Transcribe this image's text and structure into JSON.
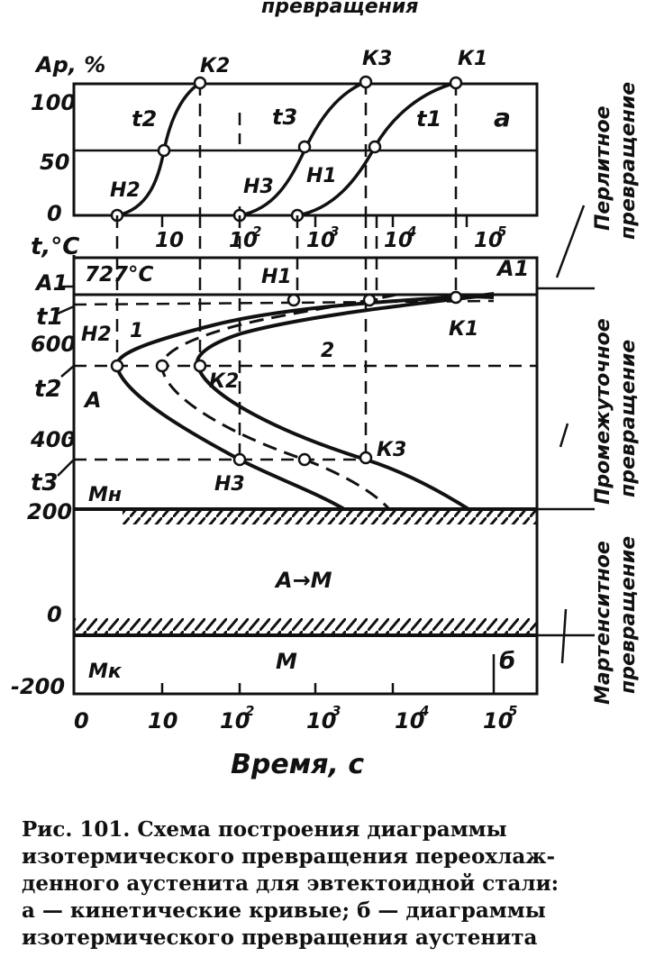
{
  "figure": {
    "top_fragment": "превращения",
    "panel_a": {
      "ylabel": "Ар, %",
      "yticks": [
        "100",
        "50",
        "0"
      ],
      "xticks": [
        "10",
        "10",
        "2",
        "10",
        "3",
        "10",
        "4",
        "10",
        "5"
      ],
      "panel_letter": "а",
      "curve_labels": [
        "t2",
        "t3",
        "t1"
      ],
      "start_points": [
        "Н2",
        "Н3",
        "Н1"
      ],
      "end_points": [
        "К2",
        "К3",
        "К1"
      ]
    },
    "panel_b": {
      "ylabel": "t,°С",
      "yticks": [
        "600",
        "400",
        "200",
        "0",
        "-200"
      ],
      "temp_marks": [
        "A1",
        "t1",
        "t2",
        "t3"
      ],
      "a1_value": "727°С",
      "a1_right": "A1",
      "curve_labels": [
        "1",
        "2"
      ],
      "region_austenite": "A",
      "region_martensite_transition": "A→M",
      "region_martensite": "M",
      "mn_label": "Мн",
      "mk_label": "Мк",
      "panel_letter": "б",
      "point_labels": [
        "Н1",
        "Н2",
        "К2",
        "К1",
        "К3",
        "Н3"
      ],
      "xticks": [
        "0",
        "10",
        "10",
        "2",
        "10",
        "3",
        "10",
        "4",
        "10",
        "5"
      ],
      "xlabel": "Время, с"
    },
    "side_labels": {
      "pearlite": [
        "Перлитное",
        "превращение"
      ],
      "intermediate": [
        "Промежуточное",
        "превращение"
      ],
      "martensite": [
        "Мартенситное",
        "превращение"
      ]
    }
  },
  "caption": {
    "line1": "Рис. 101. Схема построения диаграммы",
    "line2": "изотермического превращения переохлаж-",
    "line3": "денного аустенита для эвтектоидной стали:",
    "line4": "а — кинетические кривые; б — диаграммы",
    "line5": "изотермического превращения аустенита"
  }
}
